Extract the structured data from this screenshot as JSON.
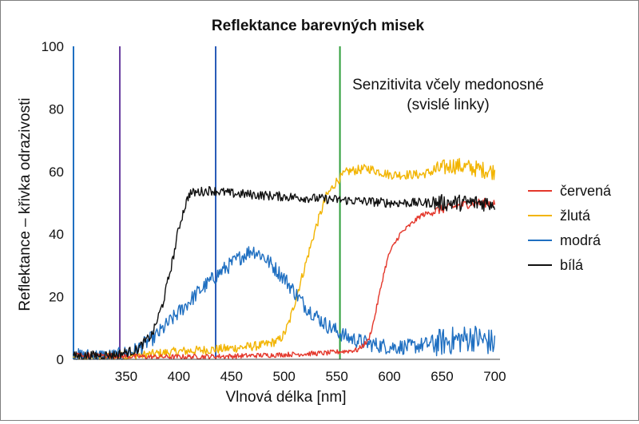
{
  "chart_data": {
    "type": "line",
    "title": "Reflektance barevných misek",
    "xlabel": "Vlnová délka [nm]",
    "ylabel": "Reflektance – křivka odrazivosti",
    "xlim": [
      300,
      705
    ],
    "ylim": [
      0,
      100
    ],
    "x_ticks": [
      350,
      400,
      450,
      500,
      550,
      600,
      650,
      700
    ],
    "y_ticks": [
      0,
      20,
      40,
      60,
      80,
      100
    ],
    "grid": false,
    "legend_position": "right",
    "annotation": {
      "line1": "Senzitivita včely medonosné",
      "line2": "(svislé linky)"
    },
    "vertical_lines": [
      {
        "x": 300,
        "color": "#1f6fc1"
      },
      {
        "x": 344,
        "color": "#6a3fa0"
      },
      {
        "x": 435,
        "color": "#2a5cb8"
      },
      {
        "x": 553,
        "color": "#2e9e3a"
      }
    ],
    "series": [
      {
        "name": "červená",
        "color": "#e4372b",
        "noise": 0.8,
        "points": [
          [
            300,
            1.5
          ],
          [
            330,
            1.2
          ],
          [
            370,
            0.8
          ],
          [
            400,
            0.8
          ],
          [
            450,
            1.0
          ],
          [
            500,
            1.5
          ],
          [
            540,
            2.0
          ],
          [
            570,
            3.0
          ],
          [
            580,
            6
          ],
          [
            585,
            12
          ],
          [
            590,
            20
          ],
          [
            595,
            28
          ],
          [
            600,
            34
          ],
          [
            610,
            40
          ],
          [
            620,
            43
          ],
          [
            630,
            46
          ],
          [
            650,
            48
          ],
          [
            680,
            50
          ],
          [
            700,
            50
          ]
        ]
      },
      {
        "name": "žlutá",
        "color": "#f2b400",
        "noise": 1.5,
        "points": [
          [
            300,
            0.5
          ],
          [
            350,
            1.0
          ],
          [
            370,
            1.5
          ],
          [
            400,
            2.5
          ],
          [
            450,
            3.5
          ],
          [
            480,
            4.5
          ],
          [
            495,
            6
          ],
          [
            500,
            8
          ],
          [
            505,
            12
          ],
          [
            510,
            18
          ],
          [
            520,
            30
          ],
          [
            530,
            42
          ],
          [
            540,
            52
          ],
          [
            550,
            57
          ],
          [
            560,
            60
          ],
          [
            580,
            61
          ],
          [
            600,
            59
          ],
          [
            630,
            59
          ],
          [
            660,
            62
          ],
          [
            680,
            61
          ],
          [
            700,
            60
          ]
        ]
      },
      {
        "name": "modrá",
        "color": "#1f6fc1",
        "noise": 2.5,
        "points": [
          [
            300,
            1
          ],
          [
            340,
            1
          ],
          [
            360,
            3
          ],
          [
            380,
            8
          ],
          [
            400,
            15
          ],
          [
            420,
            22
          ],
          [
            440,
            28
          ],
          [
            460,
            33
          ],
          [
            470,
            35
          ],
          [
            480,
            33
          ],
          [
            500,
            26
          ],
          [
            520,
            17
          ],
          [
            540,
            11
          ],
          [
            560,
            7
          ],
          [
            580,
            5
          ],
          [
            600,
            4
          ],
          [
            620,
            4
          ],
          [
            640,
            5
          ],
          [
            660,
            6
          ],
          [
            680,
            7
          ],
          [
            700,
            5
          ]
        ]
      },
      {
        "name": "bílá",
        "color": "#111111",
        "noise": 1.5,
        "points": [
          [
            300,
            1
          ],
          [
            340,
            1.5
          ],
          [
            360,
            3
          ],
          [
            375,
            8
          ],
          [
            385,
            18
          ],
          [
            395,
            33
          ],
          [
            400,
            42
          ],
          [
            405,
            48
          ],
          [
            410,
            53
          ],
          [
            430,
            54
          ],
          [
            450,
            53
          ],
          [
            500,
            52
          ],
          [
            550,
            51
          ],
          [
            600,
            50
          ],
          [
            650,
            50
          ],
          [
            700,
            50
          ]
        ]
      }
    ]
  }
}
